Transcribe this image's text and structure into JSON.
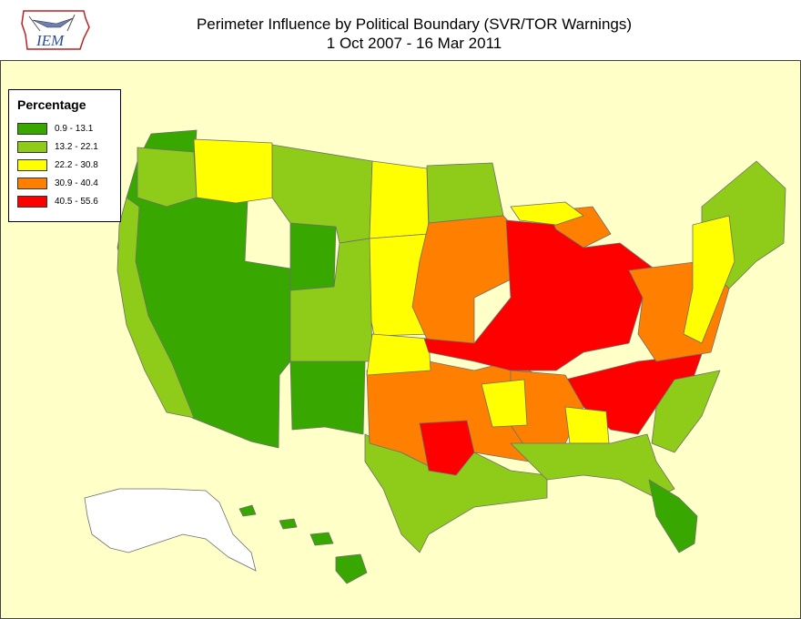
{
  "header": {
    "title_line1": "Perimeter Influence by Political Boundary (SVR/TOR Warnings)",
    "title_line2": "1 Oct 2007 - 16 Mar 2011",
    "logo_text": "IEM"
  },
  "legend": {
    "title": "Percentage",
    "items": [
      {
        "label": "0.9 - 13.1",
        "color": "#38a800"
      },
      {
        "label": "13.2 - 22.1",
        "color": "#8fcc1a"
      },
      {
        "label": "22.2 - 30.8",
        "color": "#ffff00"
      },
      {
        "label": "30.9 - 40.4",
        "color": "#ff8000"
      },
      {
        "label": "40.5 - 55.6",
        "color": "#ff0000"
      }
    ]
  },
  "colors": {
    "background": "#ffffc8",
    "boundary": "#6e6e6e"
  }
}
